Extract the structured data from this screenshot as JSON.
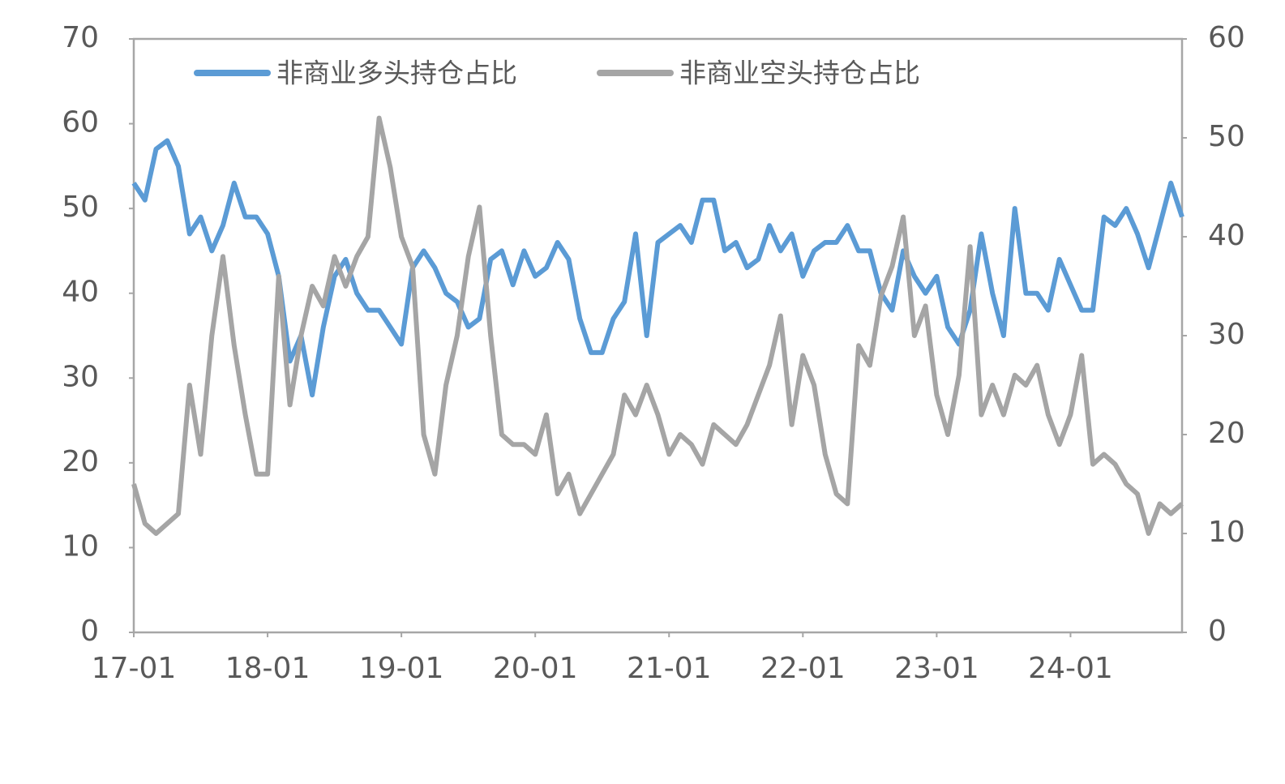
{
  "chart_data": {
    "type": "line",
    "categories": [
      "17-01",
      null,
      null,
      null,
      null,
      null,
      null,
      null,
      null,
      null,
      null,
      null,
      "18-01",
      null,
      null,
      null,
      null,
      null,
      null,
      null,
      null,
      null,
      null,
      null,
      "19-01",
      null,
      null,
      null,
      null,
      null,
      null,
      null,
      null,
      null,
      null,
      null,
      "20-01",
      null,
      null,
      null,
      null,
      null,
      null,
      null,
      null,
      null,
      null,
      null,
      "21-01",
      null,
      null,
      null,
      null,
      null,
      null,
      null,
      null,
      null,
      null,
      null,
      "22-01",
      null,
      null,
      null,
      null,
      null,
      null,
      null,
      null,
      null,
      null,
      null,
      "23-01",
      null,
      null,
      null,
      null,
      null,
      null,
      null,
      null,
      null,
      null,
      null,
      "24-01",
      null,
      null,
      null,
      null,
      null,
      null,
      null,
      null,
      null,
      null
    ],
    "series": [
      {
        "name": "非商业多头持仓占比",
        "color": "#5b9bd5",
        "values": [
          53,
          51,
          57,
          58,
          55,
          47,
          49,
          45,
          48,
          53,
          49,
          49,
          47,
          42,
          32,
          35,
          28,
          36,
          42,
          44,
          40,
          38,
          38,
          36,
          34,
          43,
          45,
          43,
          40,
          39,
          36,
          37,
          44,
          45,
          41,
          45,
          42,
          43,
          46,
          44,
          37,
          33,
          33,
          37,
          39,
          47,
          35,
          46,
          47,
          48,
          46,
          51,
          51,
          45,
          46,
          43,
          44,
          48,
          45,
          47,
          42,
          45,
          46,
          46,
          48,
          45,
          45,
          40,
          38,
          45,
          42,
          40,
          42,
          36,
          34,
          38,
          47,
          40,
          35,
          50,
          40,
          40,
          38,
          44,
          41,
          38,
          38,
          49,
          48,
          50,
          47,
          43,
          48,
          53,
          49
        ]
      },
      {
        "name": "非商业空头持仓占比",
        "color": "#a5a5a5",
        "axis": "y2",
        "values": [
          15,
          11,
          10,
          11,
          12,
          25,
          18,
          30,
          38,
          29,
          22,
          16,
          16,
          36,
          23,
          30,
          35,
          33,
          38,
          35,
          38,
          40,
          52,
          47,
          40,
          37,
          20,
          16,
          25,
          30,
          38,
          43,
          30,
          20,
          19,
          19,
          18,
          22,
          14,
          16,
          12,
          14,
          16,
          18,
          24,
          22,
          25,
          22,
          18,
          20,
          19,
          17,
          21,
          20,
          19,
          21,
          24,
          27,
          32,
          21,
          28,
          25,
          18,
          14,
          13,
          29,
          27,
          34,
          37,
          42,
          30,
          33,
          24,
          20,
          26,
          39,
          22,
          25,
          22,
          26,
          25,
          27,
          22,
          19,
          22,
          28,
          17,
          18,
          17,
          15,
          14,
          10,
          13,
          12,
          13
        ]
      }
    ],
    "ylim": [
      0,
      70
    ],
    "yticks": [
      0,
      10,
      20,
      30,
      40,
      50,
      60,
      70
    ],
    "y2lim": [
      0,
      60
    ],
    "y2ticks": [
      0,
      10,
      20,
      30,
      40,
      50,
      60
    ],
    "legend": "top"
  }
}
